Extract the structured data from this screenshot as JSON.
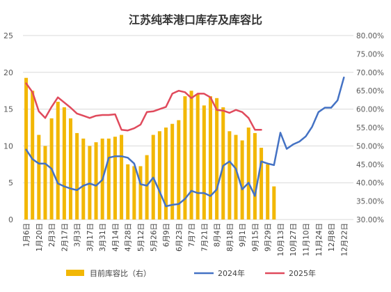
{
  "chart_data": {
    "type": "bar+line",
    "title": "江苏纯苯港口库存及库容比",
    "x_ticks": [
      "1月6日",
      "1月20日",
      "2月3日",
      "2月17日",
      "3月3日",
      "3月17日",
      "3月31日",
      "4月14日",
      "4月28日",
      "5月12日",
      "5月26日",
      "6月9日",
      "6月23日",
      "7月7日",
      "7月21日",
      "8月4日",
      "8月18日",
      "9月1日",
      "9月15日",
      "9月29日",
      "10月13日",
      "10月27日",
      "11月10日",
      "11月24日",
      "12月8日",
      "12月22日"
    ],
    "x_ticks_display": [
      "1月6日",
      "1月20日",
      "2月3日",
      "2月17日",
      "3月3日",
      "3月17日",
      "3月31日",
      "4月14日",
      "4月28日",
      "5月12日",
      "5月26日",
      "6月9日",
      "6月23日",
      "7月7日",
      "7月21日",
      "8月4日",
      "8月18日",
      "9月1日",
      "9月15日",
      "9月29日",
      "10月13日",
      "10月27日",
      "11月10日",
      "11月24日",
      "12月8日",
      "12月22日"
    ],
    "left_axis": {
      "min": 0,
      "max": 25,
      "ticks": [
        0,
        5,
        10,
        15,
        20,
        25
      ]
    },
    "right_axis": {
      "min": 30,
      "max": 80,
      "unit": "%",
      "ticks": [
        "30.00%",
        "35.00%",
        "40.00%",
        "45.00%",
        "50.00%",
        "55.00%",
        "60.00%",
        "65.00%",
        "70.00%",
        "75.00%",
        "80.00%"
      ]
    },
    "series": [
      {
        "name": "目前库容比（右）",
        "kind": "bar",
        "axis": "right",
        "color": "#F2B705",
        "values": [
          68.5,
          65,
          53,
          50,
          57.5,
          62,
          60.5,
          57.5,
          53.5,
          52,
          50,
          51,
          52,
          52,
          52.5,
          53,
          45,
          44.5,
          44.5,
          47.5,
          53,
          54,
          55,
          56,
          57,
          63.5,
          65,
          64,
          61,
          63.5,
          63,
          60.5,
          54,
          53,
          51.5,
          55,
          53.5,
          49.5,
          45,
          39
        ]
      },
      {
        "name": "2024年",
        "kind": "line",
        "axis": "left",
        "color": "#4472C4",
        "values": [
          9.5,
          8.2,
          7.6,
          7.6,
          6.9,
          4.9,
          4.5,
          4.2,
          4.0,
          4.6,
          4.9,
          4.6,
          5.4,
          8.4,
          8.6,
          8.6,
          8.4,
          7.6,
          4.8,
          4.6,
          5.7,
          3.8,
          1.8,
          2.0,
          2.1,
          2.8,
          3.9,
          3.6,
          3.6,
          3.2,
          4.1,
          7.3,
          7.9,
          6.9,
          4.1,
          5.0,
          3.2,
          7.9,
          7.6,
          7.4,
          11.8,
          9.6,
          10.2,
          10.6,
          11.3,
          12.6,
          14.6,
          15.2,
          15.2,
          16.2,
          19.3
        ]
      },
      {
        "name": "2025年",
        "kind": "line",
        "axis": "left",
        "color": "#E04A5C",
        "values": [
          18.5,
          17.3,
          14.7,
          13.8,
          15.3,
          16.6,
          15.9,
          15.2,
          14.4,
          14.1,
          13.8,
          14.1,
          14.2,
          14.2,
          14.3,
          12.2,
          12.1,
          12.4,
          12.9,
          14.6,
          14.7,
          15.0,
          15.3,
          17.1,
          17.5,
          17.3,
          16.5,
          17.1,
          17.1,
          16.6,
          14.9,
          14.8,
          14.5,
          14.9,
          14.6,
          13.8,
          12.2,
          12.2
        ]
      }
    ],
    "legend": {
      "placement": "bottom"
    }
  }
}
